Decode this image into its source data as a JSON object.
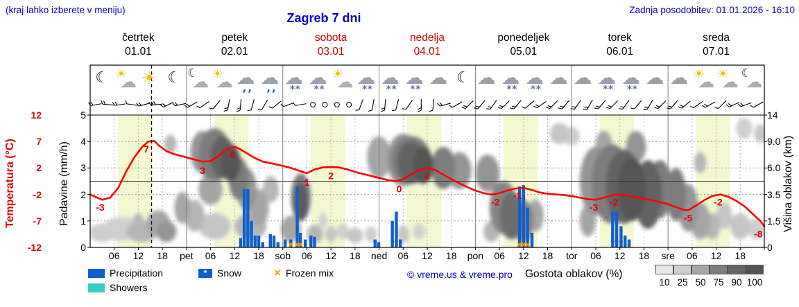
{
  "header": {
    "hint": "(kraj lahko izberete v meniju)",
    "title": "Zagreb 7 dni",
    "updated": "Zadnja posodobitev: 01.01.2026 - 16:10"
  },
  "days": [
    {
      "name": "četrtek",
      "date": "01.01",
      "red": false
    },
    {
      "name": "petek",
      "date": "02.01",
      "red": false
    },
    {
      "name": "sobota",
      "date": "03.01",
      "red": true
    },
    {
      "name": "nedelja",
      "date": "04.01",
      "red": true
    },
    {
      "name": "ponedeljek",
      "date": "05.01",
      "red": false
    },
    {
      "name": "torek",
      "date": "06.01",
      "red": false
    },
    {
      "name": "sreda",
      "date": "07.01",
      "red": false
    }
  ],
  "axes": {
    "temperature": {
      "label": "Temperatura (°C)",
      "ticks": [
        [
          "12",
          12
        ],
        [
          "7",
          7
        ],
        [
          "2",
          2
        ],
        [
          "-2",
          -2
        ],
        [
          "-7",
          -7
        ],
        [
          "-12",
          -12
        ]
      ]
    },
    "precipitation": {
      "label": "Padavine (mm/h)",
      "ticks": [
        [
          "5",
          5
        ],
        [
          "4",
          4
        ],
        [
          "3",
          3
        ],
        [
          "2",
          2
        ],
        [
          "1",
          1
        ],
        [
          "0",
          0
        ]
      ]
    },
    "cloud_height": {
      "label": "Višina oblakov (km)",
      "ticks": [
        [
          "14",
          5
        ],
        [
          "9.0",
          4
        ],
        [
          "6.0",
          3
        ],
        [
          "3.5",
          2
        ],
        [
          "1.5",
          1
        ],
        [
          "0",
          0
        ]
      ]
    }
  },
  "legend": {
    "precipitation": "Precipitation",
    "snow": "Snow",
    "frozen_mix": "Frozen mix",
    "showers": "Showers",
    "snow_star": "*",
    "frozen_glyph": "×",
    "credit": "© vreme.us & vreme.pro",
    "cloud_density_label": "Gostota oblakov (%)",
    "cloud_scale_values": [
      10,
      25,
      50,
      75,
      90,
      100
    ]
  },
  "chart_data": {
    "type": "line",
    "subtype": "meteogram",
    "hours_total": 168,
    "current_time_hour": 15.3,
    "colors": {
      "temperature_line": "#ff0000",
      "precipitation": "#1060cc",
      "snow_marker": "#1060cc",
      "frozen_mix": "#ff9900",
      "showers": "#35d0c5",
      "daylight_band": "#f4f8d0"
    },
    "daylight_bands_hours": [
      [
        7,
        15.5
      ],
      [
        31,
        39.5
      ],
      [
        55,
        63.5
      ],
      [
        79,
        87.5
      ],
      [
        103,
        111.5
      ],
      [
        127,
        135.5
      ],
      [
        151,
        159.5
      ]
    ],
    "x_tick_labels": [
      [
        6,
        "06"
      ],
      [
        12,
        "12"
      ],
      [
        18,
        "18"
      ],
      [
        24,
        "pet"
      ],
      [
        30,
        "06"
      ],
      [
        36,
        "12"
      ],
      [
        42,
        "18"
      ],
      [
        48,
        "sob"
      ],
      [
        54,
        "06"
      ],
      [
        60,
        "12"
      ],
      [
        66,
        "18"
      ],
      [
        72,
        "ned"
      ],
      [
        78,
        "06"
      ],
      [
        84,
        "12"
      ],
      [
        90,
        "18"
      ],
      [
        96,
        "pon"
      ],
      [
        102,
        "06"
      ],
      [
        108,
        "12"
      ],
      [
        114,
        "18"
      ],
      [
        120,
        "tor"
      ],
      [
        126,
        "06"
      ],
      [
        132,
        "12"
      ],
      [
        138,
        "18"
      ],
      [
        144,
        "sre"
      ],
      [
        150,
        "06"
      ],
      [
        156,
        "12"
      ],
      [
        162,
        "18"
      ]
    ],
    "temperature_c": [
      [
        0,
        -2
      ],
      [
        2,
        -2.7
      ],
      [
        3,
        -3
      ],
      [
        5,
        -2.6
      ],
      [
        7,
        -1
      ],
      [
        9,
        1.5
      ],
      [
        11,
        4
      ],
      [
        13,
        6
      ],
      [
        14.5,
        7
      ],
      [
        16,
        7.1
      ],
      [
        17,
        6.3
      ],
      [
        19,
        5.2
      ],
      [
        21,
        4.6
      ],
      [
        24,
        4
      ],
      [
        26,
        3.6
      ],
      [
        28,
        3.2
      ],
      [
        30,
        3.3
      ],
      [
        32,
        4.3
      ],
      [
        34,
        5.5
      ],
      [
        36,
        6
      ],
      [
        37,
        5.7
      ],
      [
        39,
        4.8
      ],
      [
        41,
        3.9
      ],
      [
        43,
        3.2
      ],
      [
        45,
        2.9
      ],
      [
        48,
        2.4
      ],
      [
        50,
        2
      ],
      [
        52,
        1.6
      ],
      [
        54,
        1.2
      ],
      [
        56,
        1.8
      ],
      [
        58,
        2.1
      ],
      [
        60,
        2.2
      ],
      [
        62,
        2.1
      ],
      [
        64,
        1.8
      ],
      [
        66,
        1.4
      ],
      [
        68,
        1.1
      ],
      [
        70,
        0.8
      ],
      [
        72,
        0.5
      ],
      [
        74,
        0.2
      ],
      [
        76,
        0
      ],
      [
        78,
        0.3
      ],
      [
        80,
        1
      ],
      [
        82,
        1.7
      ],
      [
        84,
        2
      ],
      [
        86,
        1.7
      ],
      [
        88,
        1
      ],
      [
        90,
        0.3
      ],
      [
        92,
        -0.3
      ],
      [
        94,
        -0.9
      ],
      [
        96,
        -1.4
      ],
      [
        98,
        -1.8
      ],
      [
        100,
        -2
      ],
      [
        102,
        -1.8
      ],
      [
        104,
        -1.4
      ],
      [
        106,
        -1.1
      ],
      [
        108,
        -1
      ],
      [
        110,
        -1.3
      ],
      [
        112,
        -1.7
      ],
      [
        114,
        -1.9
      ],
      [
        116,
        -2
      ],
      [
        118,
        -2.1
      ],
      [
        120,
        -2.3
      ],
      [
        122,
        -2.6
      ],
      [
        124,
        -2.9
      ],
      [
        126,
        -3
      ],
      [
        128,
        -2.6
      ],
      [
        130,
        -2.2
      ],
      [
        131,
        -2
      ],
      [
        133,
        -2.1
      ],
      [
        135,
        -2.4
      ],
      [
        138,
        -2.8
      ],
      [
        141,
        -3.3
      ],
      [
        144,
        -3.8
      ],
      [
        146,
        -4.4
      ],
      [
        148,
        -4.9
      ],
      [
        149,
        -5
      ],
      [
        151,
        -4.1
      ],
      [
        153,
        -3.1
      ],
      [
        155,
        -2.3
      ],
      [
        157,
        -2
      ],
      [
        159,
        -2.4
      ],
      [
        161,
        -3.2
      ],
      [
        163,
        -4.2
      ],
      [
        165,
        -5.6
      ],
      [
        167,
        -7
      ],
      [
        168,
        -8
      ]
    ],
    "temperature_labels": [
      [
        2.5,
        -3
      ],
      [
        14,
        7
      ],
      [
        28,
        3
      ],
      [
        35.5,
        6
      ],
      [
        54,
        1
      ],
      [
        60,
        2
      ],
      [
        77,
        0
      ],
      [
        84,
        2
      ],
      [
        101,
        -2
      ],
      [
        106.5,
        -1
      ],
      [
        125.5,
        -3
      ],
      [
        130.5,
        -2
      ],
      [
        149,
        -5
      ],
      [
        156.5,
        -2
      ],
      [
        166.5,
        -8
      ]
    ],
    "precipitation_mm_h": [
      [
        37.5,
        0.35
      ],
      [
        38.4,
        2.2
      ],
      [
        39.3,
        2.2
      ],
      [
        40.2,
        1.0
      ],
      [
        41.1,
        0.45
      ],
      [
        42,
        0.45
      ],
      [
        43,
        0.2
      ],
      [
        44.9,
        0.5
      ],
      [
        45.8,
        0.45
      ],
      [
        46.8,
        0.2
      ],
      [
        48.6,
        0.3
      ],
      [
        50,
        0.3
      ],
      [
        51.6,
        2.3
      ],
      [
        52.4,
        0.55
      ],
      [
        53.6,
        0.3
      ],
      [
        55,
        0.45
      ],
      [
        55.9,
        0.4
      ],
      [
        71,
        0.3
      ],
      [
        71.9,
        0.2
      ],
      [
        75.3,
        1.0
      ],
      [
        76.3,
        1.35
      ],
      [
        77.3,
        0.3
      ],
      [
        107,
        2.3
      ],
      [
        108,
        2.35
      ],
      [
        109,
        1.5
      ],
      [
        110.1,
        0.55
      ],
      [
        130.2,
        1.35
      ],
      [
        131.2,
        1.35
      ],
      [
        132.3,
        0.8
      ],
      [
        133.3,
        0.45
      ],
      [
        134.3,
        0.3
      ]
    ],
    "frozen_mix_hours": [
      50,
      51.6,
      52.4,
      107,
      108,
      109
    ],
    "snow_hours": [
      71,
      75.3,
      76.3,
      130.2,
      131.2,
      132.3
    ],
    "clouds": [
      [
        3,
        0.55,
        3.5,
        0.35,
        25
      ],
      [
        8,
        0.7,
        5,
        0.45,
        25
      ],
      [
        13,
        0.6,
        4,
        0.4,
        40
      ],
      [
        17,
        0.9,
        3,
        0.5,
        50
      ],
      [
        19,
        0.6,
        2.5,
        0.4,
        60
      ],
      [
        12,
        1.05,
        1.2,
        0.25,
        40
      ],
      [
        20,
        3.9,
        1.5,
        0.35,
        40
      ],
      [
        23,
        1.5,
        2,
        0.6,
        50
      ],
      [
        28,
        3.6,
        3,
        0.8,
        60
      ],
      [
        31,
        3.5,
        4,
        1,
        75
      ],
      [
        33,
        3.4,
        3,
        0.8,
        90
      ],
      [
        35,
        3.2,
        2.5,
        0.7,
        100
      ],
      [
        30,
        2.2,
        3,
        0.6,
        50
      ],
      [
        26,
        1.2,
        2.5,
        0.6,
        40
      ],
      [
        31,
        0.8,
        4,
        0.5,
        30
      ],
      [
        37,
        2.6,
        2.5,
        0.8,
        75
      ],
      [
        39,
        2.2,
        2.5,
        0.8,
        60
      ],
      [
        40,
        0.8,
        4,
        0.5,
        40
      ],
      [
        42,
        1.5,
        2.5,
        0.7,
        50
      ],
      [
        45,
        2.2,
        2,
        0.5,
        40
      ],
      [
        52.5,
        1.9,
        2.5,
        0.9,
        75
      ],
      [
        52.5,
        1.7,
        1.8,
        0.7,
        95
      ],
      [
        50,
        0.7,
        2.5,
        0.5,
        50
      ],
      [
        56,
        0.5,
        2,
        0.35,
        40
      ],
      [
        60,
        0.5,
        1.5,
        0.3,
        30
      ],
      [
        63,
        0.6,
        1.5,
        0.3,
        25
      ],
      [
        66,
        0.45,
        2,
        0.3,
        30
      ],
      [
        70,
        0.5,
        1.5,
        0.3,
        25
      ],
      [
        58,
        1,
        1,
        0.3,
        25
      ],
      [
        72,
        3.4,
        3,
        0.8,
        50
      ],
      [
        78,
        3.3,
        4,
        1,
        60
      ],
      [
        80,
        3.3,
        5,
        0.9,
        75
      ],
      [
        80,
        3.2,
        3.5,
        0.8,
        90
      ],
      [
        83,
        3.1,
        2.5,
        0.7,
        100
      ],
      [
        88,
        3,
        3,
        0.8,
        75
      ],
      [
        92,
        2.9,
        3,
        0.7,
        60
      ],
      [
        78,
        0.5,
        1.5,
        0.35,
        30
      ],
      [
        82,
        0.6,
        1.5,
        0.3,
        25
      ],
      [
        99,
        2.8,
        3,
        0.7,
        60
      ],
      [
        103,
        1.5,
        3.5,
        1,
        70
      ],
      [
        105,
        1.2,
        3,
        0.9,
        85
      ],
      [
        108,
        1,
        2.5,
        0.8,
        70
      ],
      [
        111,
        1.2,
        2,
        0.6,
        50
      ],
      [
        100,
        0.6,
        2,
        0.4,
        40
      ],
      [
        117,
        4.3,
        2.5,
        0.4,
        30
      ],
      [
        120,
        4.2,
        2,
        0.35,
        25
      ],
      [
        126,
        2.5,
        4,
        1.3,
        60
      ],
      [
        130,
        2.4,
        5,
        1.5,
        75
      ],
      [
        133,
        2.3,
        4.5,
        1.4,
        90
      ],
      [
        135,
        2.2,
        3.5,
        1.2,
        100
      ],
      [
        139,
        2,
        3.5,
        1.3,
        90
      ],
      [
        142,
        2.2,
        3,
        1.1,
        75
      ],
      [
        124,
        1,
        2,
        0.6,
        50
      ],
      [
        128,
        3.9,
        2,
        0.5,
        50
      ],
      [
        136,
        3.8,
        2.5,
        0.6,
        60
      ],
      [
        146,
        2,
        2.5,
        1,
        75
      ],
      [
        149,
        1.5,
        2.5,
        0.9,
        60
      ],
      [
        152,
        1,
        2.5,
        0.7,
        50
      ],
      [
        155,
        0.8,
        2,
        0.5,
        40
      ],
      [
        158,
        1.2,
        2,
        0.5,
        30
      ],
      [
        162,
        0.8,
        2.5,
        0.5,
        30
      ],
      [
        166,
        0.7,
        2,
        0.4,
        25
      ],
      [
        163,
        4.5,
        2,
        0.4,
        25
      ],
      [
        167,
        4.3,
        1.5,
        0.35,
        30
      ],
      [
        152,
        3.2,
        1.5,
        0.4,
        40
      ]
    ],
    "wind": [
      [
        1.5,
        -10,
        2
      ],
      [
        4.5,
        5,
        2
      ],
      [
        7.5,
        -8,
        2
      ],
      [
        10.5,
        8,
        1
      ],
      [
        13.5,
        -15,
        2
      ],
      [
        16.5,
        -5,
        3
      ],
      [
        19.5,
        -25,
        2
      ],
      [
        22.5,
        -12,
        2
      ],
      [
        25.5,
        -30,
        2
      ],
      [
        28.5,
        -35,
        1
      ],
      [
        31.5,
        -50,
        1
      ],
      [
        34.5,
        -80,
        2
      ],
      [
        37.5,
        -85,
        2
      ],
      [
        40.5,
        -75,
        1
      ],
      [
        43.5,
        -60,
        1
      ],
      [
        46.5,
        -40,
        1
      ],
      [
        49.5,
        -20,
        1
      ],
      [
        52.5,
        -10,
        1
      ],
      [
        55.5,
        0,
        0
      ],
      [
        58.5,
        0,
        0
      ],
      [
        61.5,
        0,
        0
      ],
      [
        64.5,
        0,
        0
      ],
      [
        67.5,
        -70,
        1
      ],
      [
        70.5,
        -80,
        1
      ],
      [
        73.5,
        -85,
        2
      ],
      [
        76.5,
        -75,
        1
      ],
      [
        79.5,
        -55,
        1
      ],
      [
        82.5,
        -90,
        2
      ],
      [
        85.5,
        -85,
        1
      ],
      [
        88.5,
        -15,
        2
      ],
      [
        91.5,
        -30,
        1
      ],
      [
        94.5,
        -45,
        2
      ],
      [
        97.5,
        -50,
        2
      ],
      [
        100.5,
        -55,
        2
      ],
      [
        103.5,
        -45,
        2
      ],
      [
        106.5,
        -50,
        2
      ],
      [
        109.5,
        -40,
        1
      ],
      [
        112.5,
        -35,
        2
      ],
      [
        115.5,
        -45,
        2
      ],
      [
        118.5,
        -50,
        2
      ],
      [
        121.5,
        -55,
        2
      ],
      [
        124.5,
        -60,
        2
      ],
      [
        127.5,
        -50,
        2
      ],
      [
        130.5,
        -45,
        2
      ],
      [
        133.5,
        -55,
        2
      ],
      [
        136.5,
        -50,
        1
      ],
      [
        139.5,
        -60,
        2
      ],
      [
        142.5,
        -45,
        2
      ],
      [
        145.5,
        -50,
        2
      ],
      [
        148.5,
        -40,
        2
      ],
      [
        151.5,
        -35,
        1
      ],
      [
        154.5,
        -30,
        2
      ],
      [
        157.5,
        -45,
        1
      ],
      [
        160.5,
        -25,
        2
      ],
      [
        163.5,
        -20,
        2
      ],
      [
        166.5,
        -30,
        1
      ]
    ],
    "icons": [
      "moon",
      "sun-cloud",
      "sun",
      "moon",
      "cloud-moon",
      "sun-cloud",
      "rain",
      "rain",
      "snow",
      "snow",
      "sun-cloud",
      "snow",
      "snow",
      "snow",
      "cloud",
      "moon",
      "cloud",
      "snow",
      "snow",
      "cloud",
      "cloud",
      "snow",
      "snow",
      "cloud",
      "cloud",
      "sun-cloud",
      "sun-cloud",
      "cloud-moon"
    ]
  }
}
